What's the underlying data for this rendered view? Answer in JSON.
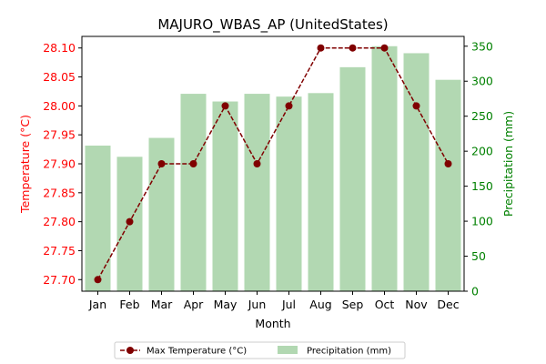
{
  "chart_data": {
    "type": "bar+line",
    "title": "MAJURO_WBAS_AP (UnitedStates)",
    "xlabel": "Month",
    "ylabel_left": "Temperature (°C)",
    "ylabel_right": "Precipitation (mm)",
    "categories": [
      "Jan",
      "Feb",
      "Mar",
      "Apr",
      "May",
      "Jun",
      "Jul",
      "Aug",
      "Sep",
      "Oct",
      "Nov",
      "Dec"
    ],
    "y_left_lim": [
      27.68,
      28.12
    ],
    "y_left_ticks": [
      "27.70",
      "27.75",
      "27.80",
      "27.85",
      "27.90",
      "27.95",
      "28.00",
      "28.05",
      "28.10"
    ],
    "y_right_lim": [
      0,
      364
    ],
    "y_right_ticks": [
      "0",
      "50",
      "100",
      "150",
      "200",
      "250",
      "300",
      "350"
    ],
    "series": [
      {
        "name": "Max Temperature (°C)",
        "kind": "line",
        "axis": "left",
        "values": [
          27.7,
          27.8,
          27.9,
          27.9,
          28.0,
          27.9,
          28.0,
          28.1,
          28.1,
          28.1,
          28.0,
          27.9
        ]
      },
      {
        "name": "Precipitation (mm)",
        "kind": "bar",
        "axis": "right",
        "values": [
          208,
          192,
          219,
          282,
          271,
          282,
          278,
          283,
          320,
          350,
          340,
          302
        ]
      }
    ],
    "grid": false,
    "legend_position": "bottom-center",
    "colors": {
      "line": "#800000",
      "bar": "#b2d8b2",
      "left_axis": "#ff0000",
      "right_axis": "#008000"
    }
  }
}
